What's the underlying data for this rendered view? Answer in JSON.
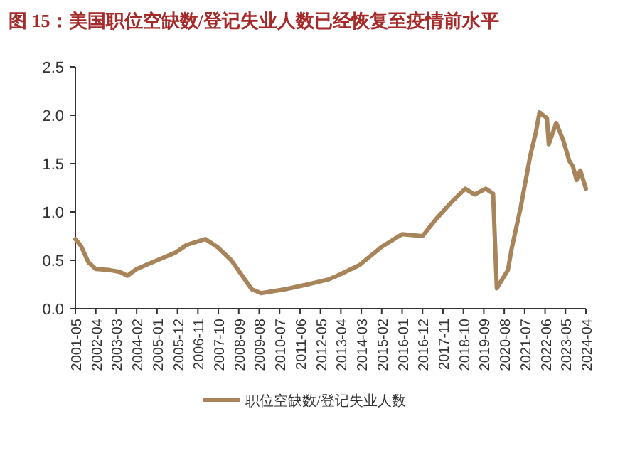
{
  "chart_data": {
    "type": "line",
    "title": "图 15：美国职位空缺数/登记失业人数已经恢复至疫情前水平",
    "x": [
      "2001-05",
      "2001-08",
      "2001-12",
      "2002-04",
      "2002-11",
      "2003-05",
      "2003-09",
      "2004-02",
      "2005-01",
      "2005-11",
      "2006-05",
      "2007-03",
      "2007-10",
      "2008-05",
      "2009-04",
      "2009-09",
      "2010-10",
      "2011-10",
      "2012-09",
      "2013-02",
      "2014-02",
      "2015-02",
      "2016-01",
      "2016-12",
      "2017-07",
      "2018-04",
      "2018-11",
      "2019-04",
      "2019-10",
      "2020-02",
      "2020-04",
      "2020-10",
      "2020-12",
      "2021-05",
      "2021-10",
      "2022-01",
      "2022-03",
      "2022-07",
      "2022-08",
      "2022-12",
      "2023-04",
      "2023-07",
      "2023-09",
      "2023-11",
      "2024-01",
      "2024-04"
    ],
    "series": [
      {
        "name": "职位空缺数/登记失业人数",
        "color": "#a8845a",
        "values": [
          0.72,
          0.65,
          0.48,
          0.41,
          0.4,
          0.38,
          0.34,
          0.41,
          0.5,
          0.58,
          0.66,
          0.72,
          0.63,
          0.5,
          0.2,
          0.16,
          0.2,
          0.25,
          0.3,
          0.34,
          0.45,
          0.64,
          0.77,
          0.75,
          0.92,
          1.11,
          1.24,
          1.18,
          1.24,
          1.19,
          0.21,
          0.4,
          0.62,
          1.06,
          1.58,
          1.82,
          2.03,
          1.97,
          1.7,
          1.92,
          1.73,
          1.53,
          1.47,
          1.33,
          1.43,
          1.24
        ]
      }
    ],
    "xlim": [
      "2001-05",
      "2024-04"
    ],
    "xticks": [
      "2001-05",
      "2002-04",
      "2003-03",
      "2004-02",
      "2005-01",
      "2005-12",
      "2006-11",
      "2007-10",
      "2008-09",
      "2009-08",
      "2010-07",
      "2011-06",
      "2012-05",
      "2013-04",
      "2014-03",
      "2015-02",
      "2016-01",
      "2016-12",
      "2017-11",
      "2018-10",
      "2019-09",
      "2020-08",
      "2021-07",
      "2022-06",
      "2023-05",
      "2024-04"
    ],
    "ylim": [
      0,
      2.5
    ],
    "yticks": [
      {
        "value": 0,
        "label": "0.0"
      },
      {
        "value": 0.5,
        "label": "0.5"
      },
      {
        "value": 1,
        "label": "1.0"
      },
      {
        "value": 1.5,
        "label": "1.5"
      },
      {
        "value": 2,
        "label": "2.0"
      },
      {
        "value": 2.5,
        "label": "2.5"
      }
    ],
    "grid": false,
    "legend": "bottom",
    "marker": "none",
    "line_style": "solid"
  }
}
